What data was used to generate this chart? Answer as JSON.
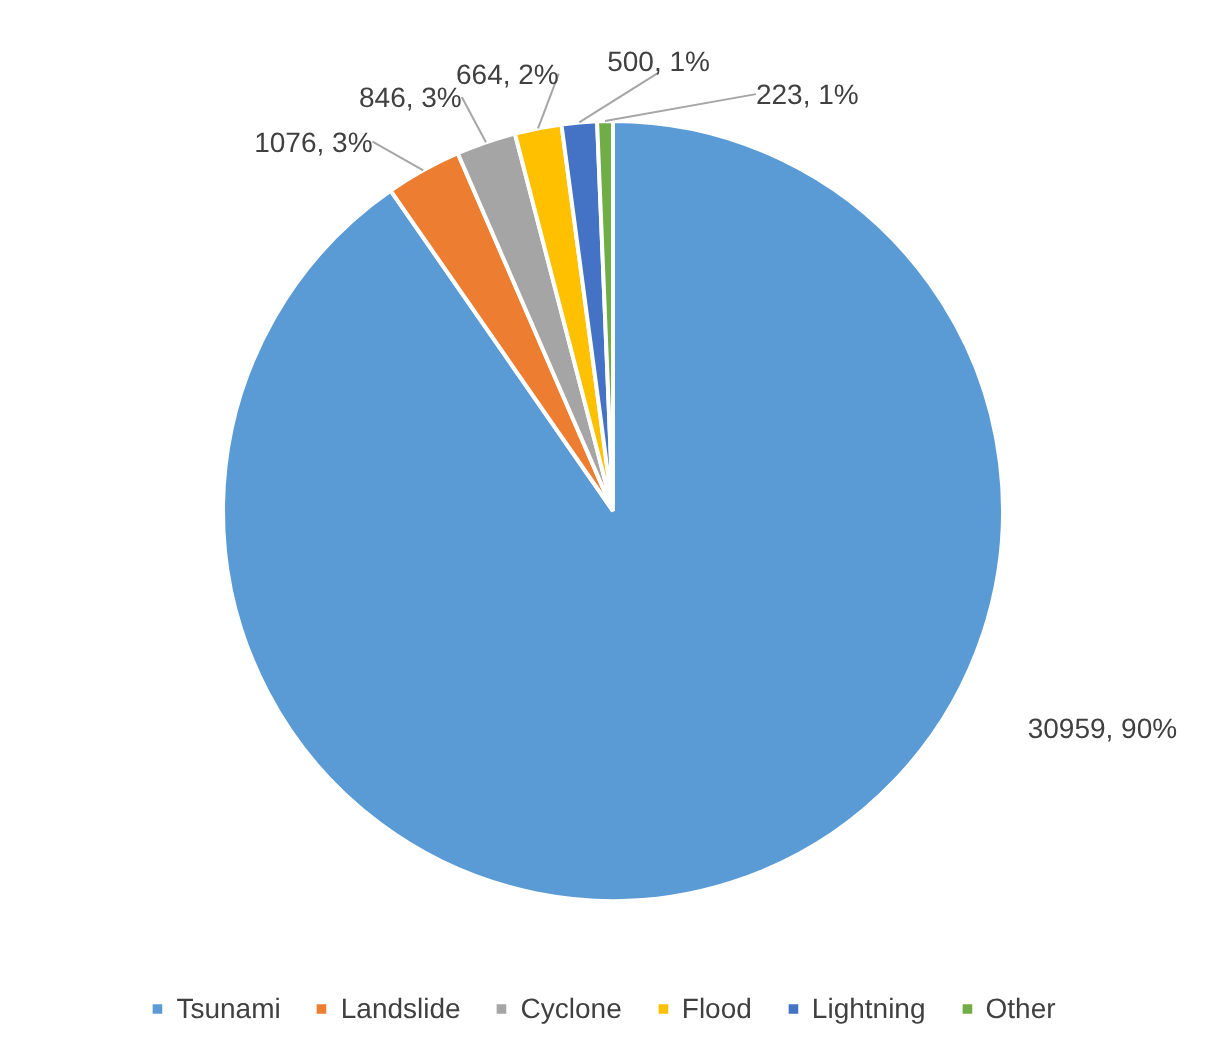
{
  "chart_data": {
    "type": "pie",
    "categories": [
      "Tsunami",
      "Landslide",
      "Cyclone",
      "Flood",
      "Lightning",
      "Other"
    ],
    "values": [
      30959,
      1076,
      846,
      664,
      500,
      223
    ],
    "colors": [
      "#5b9bd5",
      "#ed7d31",
      "#a5a5a5",
      "#ffc000",
      "#4472c4",
      "#70ad47"
    ],
    "value_labels": [
      "30959, 90%",
      "1076, 3%",
      "846, 3%",
      "664, 2%",
      "500, 1%",
      "223, 1%"
    ],
    "legend": "bottom"
  }
}
